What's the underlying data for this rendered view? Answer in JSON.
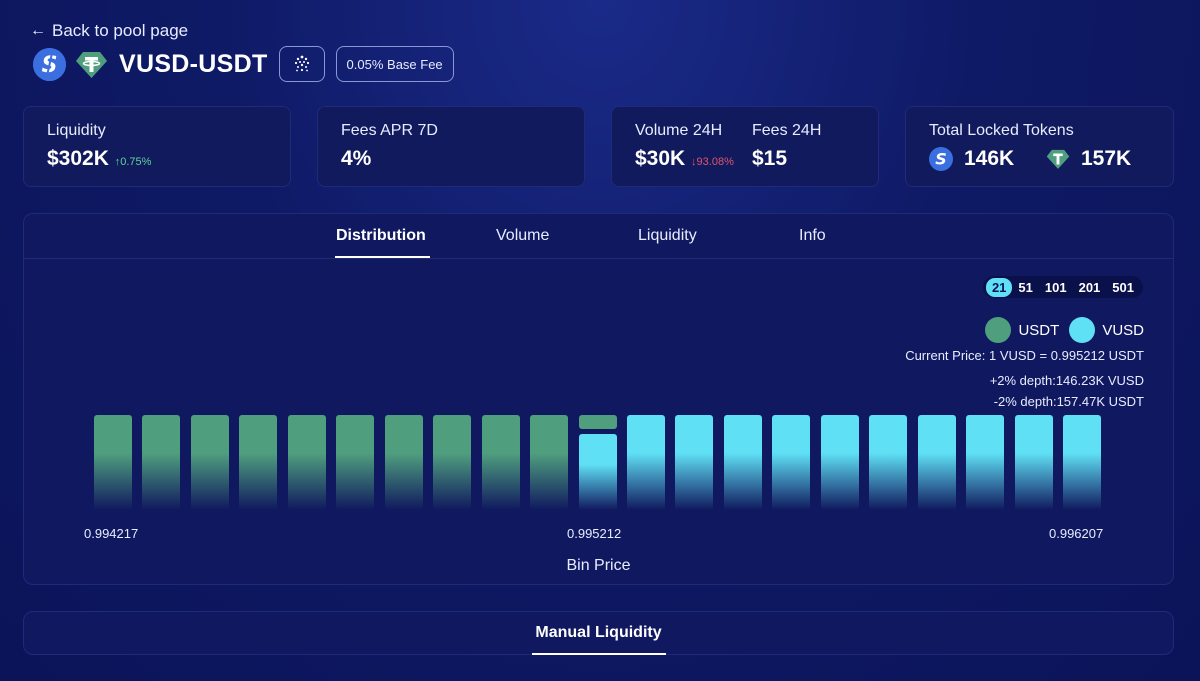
{
  "back_link": "Back to pool page",
  "pool": {
    "title": "VUSD-USDT",
    "fee_badge": "0.05% Base Fee"
  },
  "colors": {
    "usdt": "#4f9f7f",
    "vusd": "#5fe0f5",
    "up": "#5fd39a",
    "down": "#e0556b"
  },
  "stats": {
    "liquidity": {
      "label": "Liquidity",
      "value": "$302K",
      "change": "↑0.75%"
    },
    "fees_apr": {
      "label": "Fees APR 7D",
      "value": "4%"
    },
    "volume": {
      "label": "Volume 24H",
      "value": "$30K",
      "change": "↓93.08%"
    },
    "fees": {
      "label": "Fees 24H",
      "value": "$15"
    },
    "locked": {
      "label": "Total Locked Tokens",
      "vusd_value": "146K",
      "usdt_value": "157K"
    }
  },
  "tabs": [
    "Distribution",
    "Volume",
    "Liquidity",
    "Info"
  ],
  "bin_options": [
    "21",
    "51",
    "101",
    "201",
    "501"
  ],
  "legend": {
    "usdt": "USDT",
    "vusd": "VUSD"
  },
  "current_price": "Current Price: 1 VUSD = 0.995212 USDT",
  "depth": {
    "plus_label": "+2% depth:",
    "plus_value": "146.23K VUSD",
    "minus_label": "-2% depth:",
    "minus_value": "157.47K USDT"
  },
  "chart_data": {
    "type": "bar",
    "xlabel": "Bin Price",
    "tick_labels": [
      "0.994217",
      "0.995212",
      "0.996207"
    ],
    "bins": [
      {
        "token": "USDT",
        "usdt": 1,
        "vusd": 0
      },
      {
        "token": "USDT",
        "usdt": 1,
        "vusd": 0
      },
      {
        "token": "USDT",
        "usdt": 1,
        "vusd": 0
      },
      {
        "token": "USDT",
        "usdt": 1,
        "vusd": 0
      },
      {
        "token": "USDT",
        "usdt": 1,
        "vusd": 0
      },
      {
        "token": "USDT",
        "usdt": 1,
        "vusd": 0
      },
      {
        "token": "USDT",
        "usdt": 1,
        "vusd": 0
      },
      {
        "token": "USDT",
        "usdt": 1,
        "vusd": 0
      },
      {
        "token": "USDT",
        "usdt": 1,
        "vusd": 0
      },
      {
        "token": "USDT",
        "usdt": 1,
        "vusd": 0
      },
      {
        "token": "BOTH",
        "usdt": 0.15,
        "vusd": 0.8
      },
      {
        "token": "VUSD",
        "usdt": 0,
        "vusd": 1
      },
      {
        "token": "VUSD",
        "usdt": 0,
        "vusd": 1
      },
      {
        "token": "VUSD",
        "usdt": 0,
        "vusd": 1
      },
      {
        "token": "VUSD",
        "usdt": 0,
        "vusd": 1
      },
      {
        "token": "VUSD",
        "usdt": 0,
        "vusd": 1
      },
      {
        "token": "VUSD",
        "usdt": 0,
        "vusd": 1
      },
      {
        "token": "VUSD",
        "usdt": 0,
        "vusd": 1
      },
      {
        "token": "VUSD",
        "usdt": 0,
        "vusd": 1
      },
      {
        "token": "VUSD",
        "usdt": 0,
        "vusd": 1
      },
      {
        "token": "VUSD",
        "usdt": 0,
        "vusd": 1
      }
    ]
  },
  "bottom_tab": "Manual Liquidity"
}
